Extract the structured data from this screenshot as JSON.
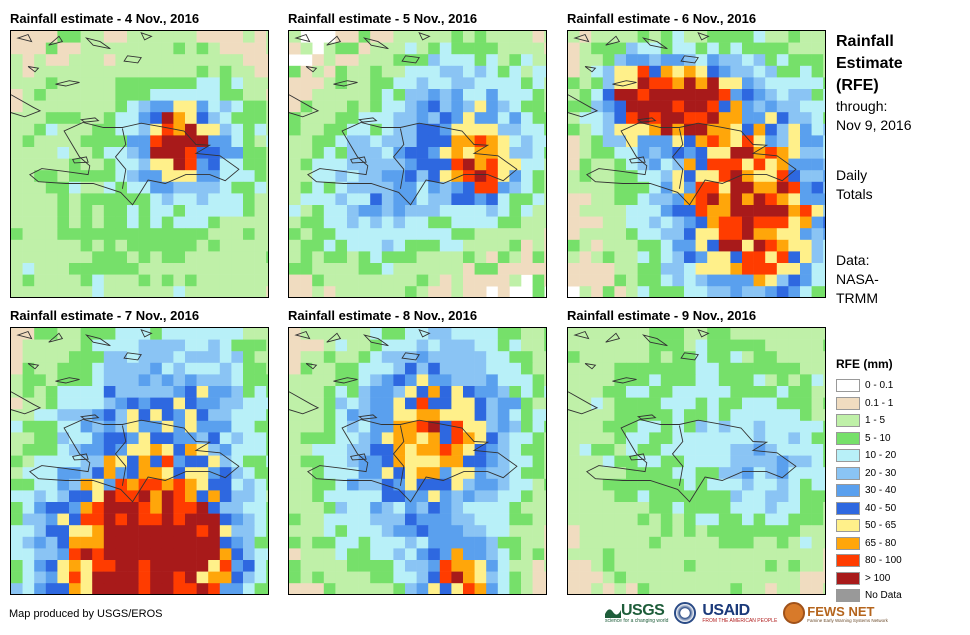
{
  "maps": [
    {
      "title": "Rainfall estimate - 4 Nov., 2016",
      "intensity": 0.35,
      "rain": [
        {
          "lon": -70.2,
          "lat": 19.4,
          "mm": 110,
          "spread": 0.55
        },
        {
          "lon": -69.8,
          "lat": 19.2,
          "mm": 40,
          "spread": 1.0
        },
        {
          "lon": -71.5,
          "lat": 17.5,
          "mm": 6,
          "spread": 2.5
        }
      ]
    },
    {
      "title": "Rainfall estimate - 5 Nov., 2016",
      "intensity": 0.55,
      "rain": [
        {
          "lon": -69.3,
          "lat": 18.6,
          "mm": 70,
          "spread": 0.6
        },
        {
          "lon": -70.0,
          "lat": 19.6,
          "mm": 40,
          "spread": 1.3
        },
        {
          "lon": -72.5,
          "lat": 18.0,
          "mm": 25,
          "spread": 1.2
        }
      ]
    },
    {
      "title": "Rainfall estimate - 6 Nov., 2016",
      "intensity": 0.75,
      "rain": [
        {
          "lon": -72.8,
          "lat": 20.5,
          "mm": 120,
          "spread": 0.7
        },
        {
          "lon": -71.3,
          "lat": 20.5,
          "mm": 120,
          "spread": 0.6
        },
        {
          "lon": -69.6,
          "lat": 17.0,
          "mm": 90,
          "spread": 1.3
        },
        {
          "lon": -70.0,
          "lat": 19.0,
          "mm": 50,
          "spread": 1.6
        }
      ]
    },
    {
      "title": "Rainfall estimate - 7 Nov., 2016",
      "intensity": 0.65,
      "rain": [
        {
          "lon": -71.5,
          "lat": 15.9,
          "mm": 120,
          "spread": 1.6
        },
        {
          "lon": -70.0,
          "lat": 16.3,
          "mm": 85,
          "spread": 1.0
        },
        {
          "lon": -70.5,
          "lat": 19.8,
          "mm": 45,
          "spread": 1.6
        }
      ]
    },
    {
      "title": "Rainfall estimate - 8 Nov., 2016",
      "intensity": 0.5,
      "rain": [
        {
          "lon": -70.6,
          "lat": 19.9,
          "mm": 60,
          "spread": 1.4
        },
        {
          "lon": -70.0,
          "lat": 15.4,
          "mm": 85,
          "spread": 0.7
        },
        {
          "lon": -71.5,
          "lat": 18.0,
          "mm": 25,
          "spread": 1.5
        }
      ]
    },
    {
      "title": "Rainfall estimate - 9 Nov., 2016",
      "intensity": 0.25,
      "rain": [
        {
          "lon": -71.0,
          "lat": 19.5,
          "mm": 12,
          "spread": 2.2
        },
        {
          "lon": -69.0,
          "lat": 18.5,
          "mm": 18,
          "spread": 1.0
        }
      ]
    }
  ],
  "side_title": [
    "Rainfall",
    "Estimate",
    "(RFE)"
  ],
  "through_label": "through:",
  "through_date": "Nov 9, 2016",
  "daily_lines": [
    "Daily",
    "Totals"
  ],
  "data_lines": [
    "Data:",
    "NASA-",
    "TRMM"
  ],
  "legend": {
    "title": "RFE (mm)",
    "items": [
      {
        "label": "0 - 0.1",
        "color": "#ffffff"
      },
      {
        "label": "0.1 - 1",
        "color": "#f0dcc0"
      },
      {
        "label": "1 - 5",
        "color": "#bff0a8"
      },
      {
        "label": "5 - 10",
        "color": "#76e06a"
      },
      {
        "label": "10 - 20",
        "color": "#b8f0f8"
      },
      {
        "label": "20 - 30",
        "color": "#8ac4f4"
      },
      {
        "label": "30 - 40",
        "color": "#5aa0ee"
      },
      {
        "label": "40 - 50",
        "color": "#2e68e0"
      },
      {
        "label": "50 - 65",
        "color": "#fff08a"
      },
      {
        "label": "65 - 80",
        "color": "#ffa60a"
      },
      {
        "label": "80 - 100",
        "color": "#ff3c00"
      },
      {
        "label": "> 100",
        "color": "#a81a1a"
      },
      {
        "label": "No Data",
        "color": "#999999"
      }
    ]
  },
  "credit": "Map produced by USGS/EROS",
  "logos": {
    "usgs": "USGS",
    "usgs_tag": "science for a changing world",
    "usaid": "USAID",
    "usaid_tag": "FROM THE AMERICAN PEOPLE",
    "fews": "FEWS NET",
    "fews_tag": "Famine Early Warning Systems Network"
  }
}
